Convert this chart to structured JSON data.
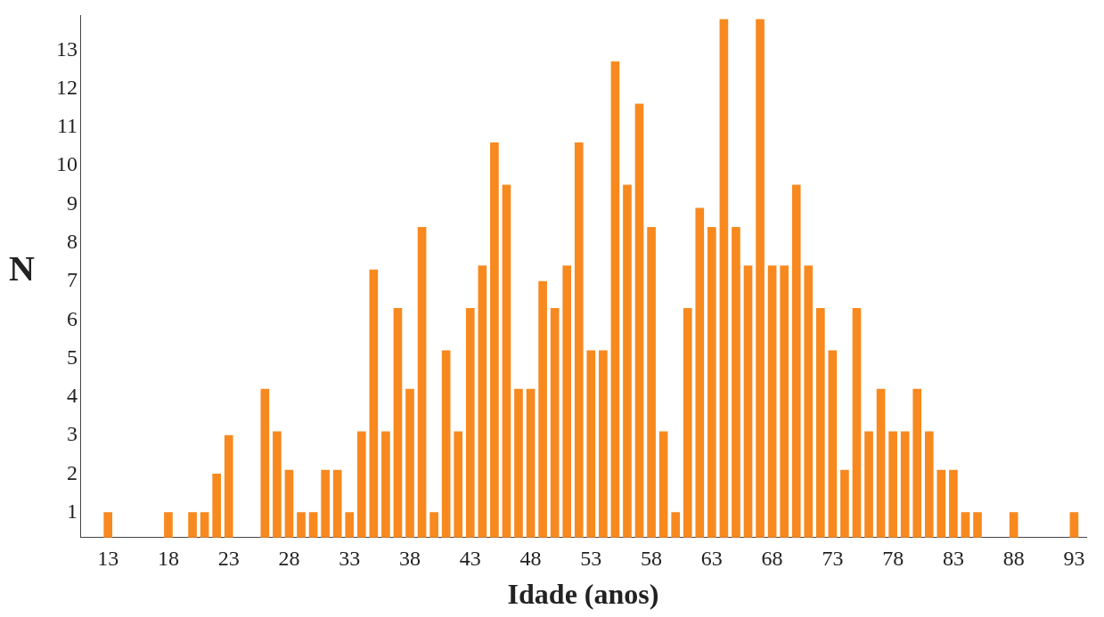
{
  "chart_data": {
    "type": "bar",
    "xlabel": "Idade (anos)",
    "ylabel": "N",
    "x": [
      13,
      18,
      20,
      21,
      22,
      23,
      26,
      27,
      28,
      29,
      30,
      31,
      32,
      33,
      34,
      35,
      36,
      37,
      38,
      39,
      40,
      41,
      42,
      43,
      44,
      45,
      46,
      47,
      48,
      49,
      50,
      51,
      52,
      53,
      54,
      55,
      56,
      57,
      58,
      59,
      60,
      61,
      62,
      63,
      64,
      65,
      66,
      67,
      68,
      69,
      70,
      71,
      72,
      73,
      74,
      75,
      76,
      77,
      78,
      79,
      80,
      81,
      82,
      83,
      84,
      85,
      88,
      93
    ],
    "values": [
      1,
      1,
      1,
      1,
      2,
      3,
      4.2,
      3.1,
      2.1,
      1,
      1,
      2.1,
      2.1,
      1,
      3.1,
      7.3,
      3.1,
      6.3,
      4.2,
      8.4,
      1,
      5.2,
      3.1,
      6.3,
      7.4,
      10.6,
      9.5,
      4.2,
      4.2,
      7,
      6.3,
      7.4,
      10.6,
      5.2,
      5.2,
      12.7,
      9.5,
      11.6,
      8.4,
      3.1,
      1,
      6.3,
      8.9,
      8.4,
      13.8,
      8.4,
      7.4,
      13.8,
      7.4,
      7.4,
      9.5,
      7.4,
      6.3,
      5.2,
      2.1,
      6.3,
      3.1,
      4.2,
      3.1,
      3.1,
      4.2,
      3.1,
      2.1,
      2.1,
      1,
      1,
      1,
      1
    ],
    "color": "#f7891f",
    "xlim": [
      10.7,
      94
    ],
    "xticks": [
      13,
      18,
      23,
      28,
      33,
      38,
      43,
      48,
      53,
      58,
      63,
      68,
      73,
      78,
      83,
      88,
      93
    ],
    "ylim": [
      0.35,
      13.9
    ],
    "yticks": [
      1,
      2,
      3,
      4,
      5,
      6,
      7,
      8,
      9,
      10,
      11,
      12,
      13
    ],
    "grid": false,
    "legend": false
  }
}
